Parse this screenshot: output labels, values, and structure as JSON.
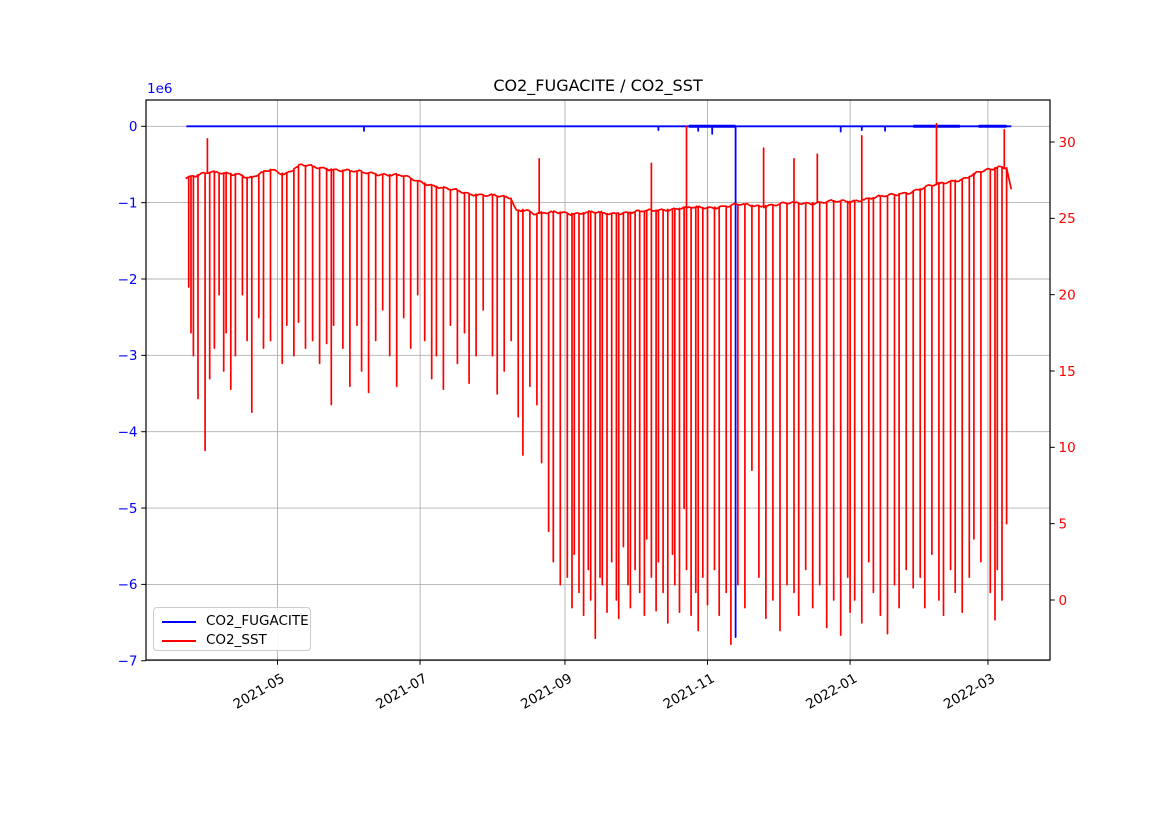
{
  "chart_data": {
    "type": "line",
    "title": "CO2_FUGACITE / CO2_SST",
    "grid": true,
    "background_color": "#ffffff",
    "grid_color": "#b0b0b0",
    "x_axis": {
      "tick_dates": [
        "2021-05-01",
        "2021-07-01",
        "2021-09-01",
        "2021-11-01",
        "2022-01-01",
        "2022-03-01"
      ],
      "tick_labels": [
        "2021-05",
        "2021-07",
        "2021-09",
        "2021-11",
        "2022-01",
        "2022-03"
      ],
      "tick_rotation_deg": 30,
      "data_start": "2021-03-23",
      "data_end": "2022-03-11"
    },
    "y_left": {
      "color": "#0000ff",
      "offset_text": "1e6",
      "tick_values": [
        0,
        -1000000,
        -2000000,
        -3000000,
        -4000000,
        -5000000,
        -6000000,
        -7000000
      ],
      "tick_labels": [
        "0",
        "−1",
        "−2",
        "−3",
        "−4",
        "−5",
        "−6",
        "−7"
      ],
      "range": [
        -6980000,
        330000
      ]
    },
    "y_right": {
      "color": "#ff0000",
      "tick_values": [
        30,
        25,
        20,
        15,
        10,
        5,
        0
      ],
      "tick_labels": [
        "30",
        "25",
        "20",
        "15",
        "10",
        "5",
        "0"
      ],
      "range": [
        -3.9,
        32.8
      ]
    },
    "legend": {
      "position": "lower-left",
      "labels": [
        "CO2_FUGACITE",
        "CO2_SST"
      ]
    },
    "series": [
      {
        "name": "CO2_FUGACITE",
        "color": "#0000ff",
        "axis": "left",
        "flat_value": 0,
        "start": "2021-03-23",
        "end": "2022-03-11",
        "main_spike": [
          "2021-11-13",
          -6690000
        ],
        "minor_dips": [
          [
            "2021-06-07",
            -60000
          ],
          [
            "2021-10-11",
            -50000
          ],
          [
            "2021-10-28",
            -60000
          ],
          [
            "2021-11-03",
            -100000
          ],
          [
            "2021-12-28",
            -70000
          ],
          [
            "2022-01-06",
            -50000
          ],
          [
            "2022-01-16",
            -60000
          ]
        ],
        "thick_segments": [
          [
            "2021-10-24",
            "2021-11-13"
          ],
          [
            "2022-01-28",
            "2022-02-17"
          ],
          [
            "2022-02-25",
            "2022-03-09"
          ]
        ]
      },
      {
        "name": "CO2_SST",
        "color": "#ff0000",
        "axis": "right",
        "baseline": [
          [
            "2021-03-23",
            27.7
          ],
          [
            "2021-04-02",
            28.0
          ],
          [
            "2021-04-15",
            27.9
          ],
          [
            "2021-04-19",
            27.6
          ],
          [
            "2021-04-28",
            28.2
          ],
          [
            "2021-05-04",
            27.9
          ],
          [
            "2021-05-11",
            28.5
          ],
          [
            "2021-05-19",
            28.3
          ],
          [
            "2021-06-01",
            28.1
          ],
          [
            "2021-06-14",
            27.9
          ],
          [
            "2021-06-23",
            27.8
          ],
          [
            "2021-07-01",
            27.4
          ],
          [
            "2021-07-10",
            27.0
          ],
          [
            "2021-07-17",
            26.8
          ],
          [
            "2021-07-22",
            26.6
          ],
          [
            "2021-08-01",
            26.5
          ],
          [
            "2021-08-09",
            26.3
          ],
          [
            "2021-08-11",
            25.5
          ],
          [
            "2021-08-15",
            25.6
          ],
          [
            "2021-08-19",
            25.3
          ],
          [
            "2021-08-30",
            25.4
          ],
          [
            "2021-09-05",
            25.3
          ],
          [
            "2021-09-12",
            25.4
          ],
          [
            "2021-09-20",
            25.3
          ],
          [
            "2021-09-29",
            25.4
          ],
          [
            "2021-10-08",
            25.5
          ],
          [
            "2021-10-16",
            25.6
          ],
          [
            "2021-10-24",
            25.7
          ],
          [
            "2021-11-02",
            25.7
          ],
          [
            "2021-11-09",
            25.8
          ],
          [
            "2021-11-15",
            25.9
          ],
          [
            "2021-11-24",
            25.8
          ],
          [
            "2021-11-30",
            25.9
          ],
          [
            "2021-12-07",
            26.0
          ],
          [
            "2021-12-15",
            26.0
          ],
          [
            "2021-12-24",
            26.1
          ],
          [
            "2022-01-01",
            26.1
          ],
          [
            "2022-01-09",
            26.3
          ],
          [
            "2022-01-18",
            26.5
          ],
          [
            "2022-01-26",
            26.7
          ],
          [
            "2022-02-04",
            27.1
          ],
          [
            "2022-02-12",
            27.4
          ],
          [
            "2022-02-19",
            27.6
          ],
          [
            "2022-02-25",
            28.0
          ],
          [
            "2022-03-02",
            28.2
          ],
          [
            "2022-03-06",
            28.4
          ],
          [
            "2022-03-09",
            28.3
          ],
          [
            "2022-03-11",
            26.9
          ]
        ],
        "down_spikes": [
          [
            "2021-03-24",
            20.5
          ],
          [
            "2021-03-25",
            17.5
          ],
          [
            "2021-03-26",
            16.0
          ],
          [
            "2021-03-28",
            13.2
          ],
          [
            "2021-03-31",
            9.8
          ],
          [
            "2021-04-02",
            14.5
          ],
          [
            "2021-04-04",
            16.5
          ],
          [
            "2021-04-06",
            20.0
          ],
          [
            "2021-04-08",
            15.0
          ],
          [
            "2021-04-09",
            17.5
          ],
          [
            "2021-04-11",
            13.8
          ],
          [
            "2021-04-13",
            16.0
          ],
          [
            "2021-04-16",
            20.0
          ],
          [
            "2021-04-18",
            17.0
          ],
          [
            "2021-04-20",
            12.3
          ],
          [
            "2021-04-23",
            18.5
          ],
          [
            "2021-04-25",
            16.5
          ],
          [
            "2021-04-28",
            17.0
          ],
          [
            "2021-05-03",
            15.5
          ],
          [
            "2021-05-05",
            18.0
          ],
          [
            "2021-05-08",
            16.0
          ],
          [
            "2021-05-10",
            18.2
          ],
          [
            "2021-05-13",
            16.5
          ],
          [
            "2021-05-16",
            17.0
          ],
          [
            "2021-05-19",
            15.5
          ],
          [
            "2021-05-22",
            16.8
          ],
          [
            "2021-05-24",
            12.8
          ],
          [
            "2021-05-25",
            18.0
          ],
          [
            "2021-05-29",
            16.5
          ],
          [
            "2021-06-01",
            14.0
          ],
          [
            "2021-06-04",
            18.0
          ],
          [
            "2021-06-06",
            15.0
          ],
          [
            "2021-06-09",
            13.6
          ],
          [
            "2021-06-12",
            17.0
          ],
          [
            "2021-06-15",
            19.0
          ],
          [
            "2021-06-18",
            16.0
          ],
          [
            "2021-06-21",
            14.0
          ],
          [
            "2021-06-24",
            18.5
          ],
          [
            "2021-06-27",
            16.5
          ],
          [
            "2021-06-30",
            20.0
          ],
          [
            "2021-07-03",
            17.0
          ],
          [
            "2021-07-06",
            14.5
          ],
          [
            "2021-07-08",
            16.0
          ],
          [
            "2021-07-11",
            13.8
          ],
          [
            "2021-07-14",
            18.0
          ],
          [
            "2021-07-17",
            15.5
          ],
          [
            "2021-07-20",
            17.5
          ],
          [
            "2021-07-22",
            14.2
          ],
          [
            "2021-07-25",
            16.0
          ],
          [
            "2021-07-28",
            19.0
          ],
          [
            "2021-08-01",
            16.0
          ],
          [
            "2021-08-03",
            13.5
          ],
          [
            "2021-08-06",
            15.0
          ],
          [
            "2021-08-09",
            17.0
          ],
          [
            "2021-08-12",
            12.0
          ],
          [
            "2021-08-14",
            9.5
          ],
          [
            "2021-08-17",
            14.0
          ],
          [
            "2021-08-20",
            12.8
          ],
          [
            "2021-08-22",
            9.0
          ],
          [
            "2021-08-25",
            4.5
          ],
          [
            "2021-08-27",
            2.5
          ],
          [
            "2021-08-30",
            1.0
          ],
          [
            "2021-09-02",
            1.5
          ],
          [
            "2021-09-04",
            -0.5
          ],
          [
            "2021-09-05",
            3.0
          ],
          [
            "2021-09-07",
            0.5
          ],
          [
            "2021-09-09",
            -1.0
          ],
          [
            "2021-09-11",
            2.0
          ],
          [
            "2021-09-12",
            0.0
          ],
          [
            "2021-09-14",
            -2.5
          ],
          [
            "2021-09-16",
            1.5
          ],
          [
            "2021-09-17",
            1.0
          ],
          [
            "2021-09-19",
            -0.8
          ],
          [
            "2021-09-21",
            2.5
          ],
          [
            "2021-09-23",
            0.0
          ],
          [
            "2021-09-24",
            -1.2
          ],
          [
            "2021-09-26",
            3.5
          ],
          [
            "2021-09-28",
            1.0
          ],
          [
            "2021-09-29",
            -0.5
          ],
          [
            "2021-10-01",
            2.0
          ],
          [
            "2021-10-03",
            0.5
          ],
          [
            "2021-10-05",
            -1.0
          ],
          [
            "2021-10-06",
            4.0
          ],
          [
            "2021-10-08",
            1.5
          ],
          [
            "2021-10-10",
            -0.7
          ],
          [
            "2021-10-11",
            2.5
          ],
          [
            "2021-10-13",
            0.5
          ],
          [
            "2021-10-15",
            -1.5
          ],
          [
            "2021-10-17",
            3.0
          ],
          [
            "2021-10-18",
            1.0
          ],
          [
            "2021-10-20",
            -0.8
          ],
          [
            "2021-10-22",
            6.0
          ],
          [
            "2021-10-23",
            2.0
          ],
          [
            "2021-10-25",
            -1.0
          ],
          [
            "2021-10-27",
            0.5
          ],
          [
            "2021-10-28",
            -2.0
          ],
          [
            "2021-10-30",
            1.5
          ],
          [
            "2021-11-01",
            -0.3
          ],
          [
            "2021-11-04",
            2.0
          ],
          [
            "2021-11-06",
            -1.0
          ],
          [
            "2021-11-09",
            0.5
          ],
          [
            "2021-11-11",
            -2.9
          ],
          [
            "2021-11-14",
            1.0
          ],
          [
            "2021-11-17",
            -0.5
          ],
          [
            "2021-11-20",
            8.5
          ],
          [
            "2021-11-23",
            1.5
          ],
          [
            "2021-11-26",
            -1.2
          ],
          [
            "2021-11-29",
            0.0
          ],
          [
            "2021-12-02",
            -2.0
          ],
          [
            "2021-12-05",
            1.0
          ],
          [
            "2021-12-08",
            0.5
          ],
          [
            "2021-12-10",
            -1.0
          ],
          [
            "2021-12-13",
            2.0
          ],
          [
            "2021-12-16",
            -0.5
          ],
          [
            "2021-12-19",
            1.0
          ],
          [
            "2021-12-22",
            -1.8
          ],
          [
            "2021-12-25",
            0.0
          ],
          [
            "2021-12-28",
            -2.3
          ],
          [
            "2021-12-31",
            1.5
          ],
          [
            "2022-01-01",
            -0.8
          ],
          [
            "2022-01-03",
            0.0
          ],
          [
            "2022-01-06",
            -1.5
          ],
          [
            "2022-01-09",
            2.5
          ],
          [
            "2022-01-11",
            0.5
          ],
          [
            "2022-01-14",
            -1.0
          ],
          [
            "2022-01-17",
            -2.2
          ],
          [
            "2022-01-20",
            1.0
          ],
          [
            "2022-01-22",
            -0.5
          ],
          [
            "2022-01-25",
            2.0
          ],
          [
            "2022-01-28",
            0.8
          ],
          [
            "2022-01-31",
            1.5
          ],
          [
            "2022-02-02",
            -0.5
          ],
          [
            "2022-02-05",
            3.0
          ],
          [
            "2022-02-08",
            0.0
          ],
          [
            "2022-02-10",
            -1.0
          ],
          [
            "2022-02-13",
            2.0
          ],
          [
            "2022-02-15",
            0.5
          ],
          [
            "2022-02-18",
            -0.8
          ],
          [
            "2022-02-21",
            1.5
          ],
          [
            "2022-02-23",
            4.0
          ],
          [
            "2022-02-26",
            2.5
          ],
          [
            "2022-03-02",
            0.5
          ],
          [
            "2022-03-04",
            -1.3
          ],
          [
            "2022-03-05",
            2.0
          ],
          [
            "2022-03-07",
            0.0
          ],
          [
            "2022-03-09",
            5.0
          ],
          [
            "2022-03-10",
            1.5
          ]
        ],
        "up_spikes": [
          [
            "2021-04-01",
            30.2
          ],
          [
            "2021-08-21",
            28.9
          ],
          [
            "2021-10-08",
            28.6
          ],
          [
            "2021-10-23",
            31.0
          ],
          [
            "2021-11-25",
            29.6
          ],
          [
            "2021-12-08",
            28.9
          ],
          [
            "2021-12-18",
            29.2
          ],
          [
            "2022-01-06",
            30.4
          ],
          [
            "2022-02-07",
            31.2
          ],
          [
            "2022-03-08",
            30.8
          ]
        ]
      }
    ]
  }
}
